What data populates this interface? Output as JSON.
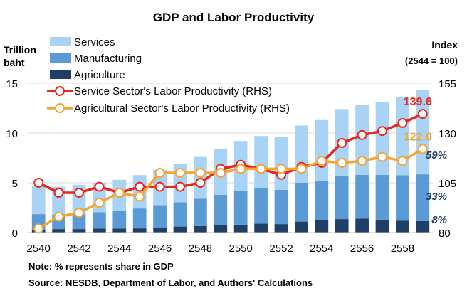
{
  "chart_data": {
    "type": "bar",
    "title": "GDP and Labor Productivity",
    "ylabel": "Trillion\nbaht",
    "y2label": "Index\n(2544 = 100)",
    "ylim": [
      0,
      15
    ],
    "y2lim": [
      80,
      155
    ],
    "yticks": [
      0,
      5,
      10,
      15
    ],
    "y2ticks": [
      80,
      105,
      130,
      155
    ],
    "categories": [
      "2540",
      "2541",
      "2542",
      "2543",
      "2544",
      "2545",
      "2546",
      "2547",
      "2548",
      "2549",
      "2550",
      "2551",
      "2552",
      "2553",
      "2554",
      "2555",
      "2556",
      "2557",
      "2558",
      "2559"
    ],
    "xtick_labels": [
      "2540",
      "2542",
      "2544",
      "2546",
      "2548",
      "2550",
      "2552",
      "2554",
      "2556",
      "2558"
    ],
    "grid": true,
    "legend_position": "top-left",
    "stacked_series": [
      {
        "name": "Agriculture",
        "color": "#1f3f66",
        "values": [
          0.3,
          0.35,
          0.35,
          0.4,
          0.4,
          0.42,
          0.5,
          0.6,
          0.65,
          0.75,
          0.8,
          0.9,
          0.85,
          1.1,
          1.25,
          1.35,
          1.4,
          1.3,
          1.2,
          1.15
        ]
      },
      {
        "name": "Manufacturing",
        "color": "#5b9bd5",
        "values": [
          1.55,
          1.45,
          1.55,
          1.65,
          1.8,
          2.0,
          2.25,
          2.45,
          2.75,
          3.05,
          3.35,
          3.55,
          3.45,
          3.9,
          3.95,
          4.35,
          4.4,
          4.5,
          4.55,
          4.7
        ]
      },
      {
        "name": "Services",
        "color": "#a8d3f4",
        "values": [
          2.85,
          2.8,
          2.9,
          2.95,
          3.1,
          3.35,
          3.55,
          3.85,
          4.2,
          4.6,
          5.05,
          5.25,
          5.3,
          5.75,
          6.1,
          6.7,
          7.05,
          7.3,
          7.85,
          8.45
        ]
      }
    ],
    "line_series": [
      {
        "name": "Service Sector's Labor Productivity (RHS)",
        "color": "#e8281d",
        "axis": "right",
        "values": [
          105,
          100,
          100,
          103,
          100,
          103,
          103,
          103,
          105,
          112,
          114,
          112,
          109,
          113,
          115,
          125,
          129,
          131,
          135,
          139.6
        ],
        "end_label": "139.6"
      },
      {
        "name": "Agricultural Sector's Labor Productivity (RHS)",
        "color": "#f5a335",
        "axis": "right",
        "values": [
          82,
          88,
          90,
          95,
          100,
          98,
          110,
          110,
          110,
          110,
          112,
          112,
          112,
          112,
          116,
          115,
          116,
          118,
          116,
          122.0
        ],
        "end_label": "122.0"
      }
    ],
    "share_labels": [
      {
        "text": "59%",
        "series": "Services"
      },
      {
        "text": "33%",
        "series": "Manufacturing"
      },
      {
        "text": "8%",
        "series": "Agriculture"
      }
    ],
    "notes": [
      "Note: % represents share in GDP",
      "Source: NESDB, Department of Labor, and Authors' Calculations"
    ]
  }
}
